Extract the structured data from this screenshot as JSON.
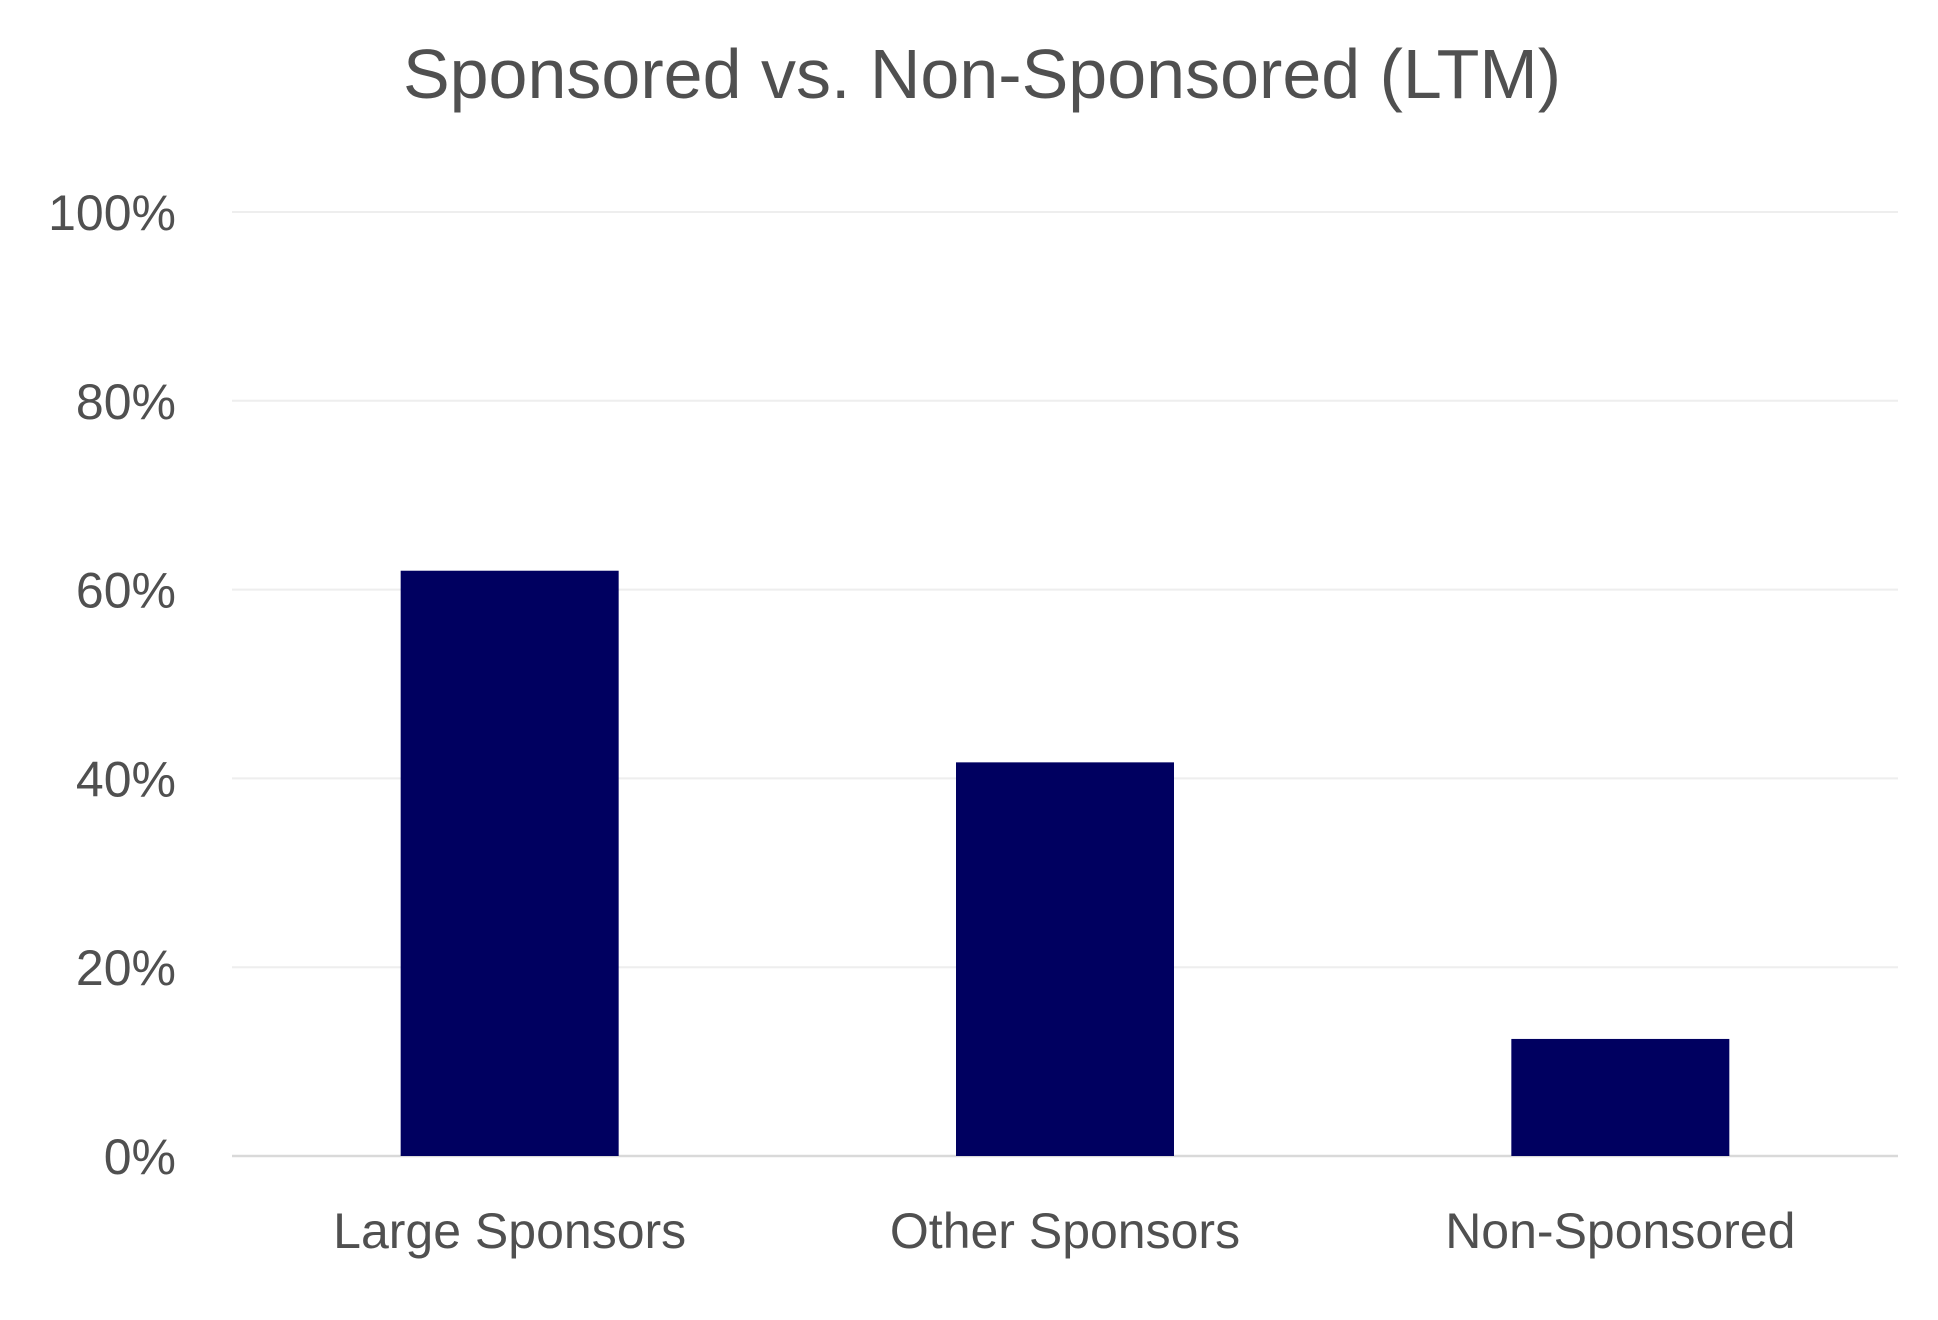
{
  "chart_data": {
    "type": "bar",
    "title": "Sponsored vs. Non-Sponsored (LTM)",
    "xlabel": "",
    "ylabel": "",
    "categories": [
      "Large Sponsors",
      "Other Sponsors",
      "Non-Sponsored"
    ],
    "values": [
      62,
      41.7,
      12.4
    ],
    "ylim": [
      0,
      100
    ],
    "yticks": [
      0,
      20,
      40,
      60,
      80,
      100
    ],
    "ytick_labels": [
      "0%",
      "20%",
      "40%",
      "60%",
      "80%",
      "100%"
    ],
    "grid": true,
    "legend": "none",
    "bar_color": "#000060"
  }
}
